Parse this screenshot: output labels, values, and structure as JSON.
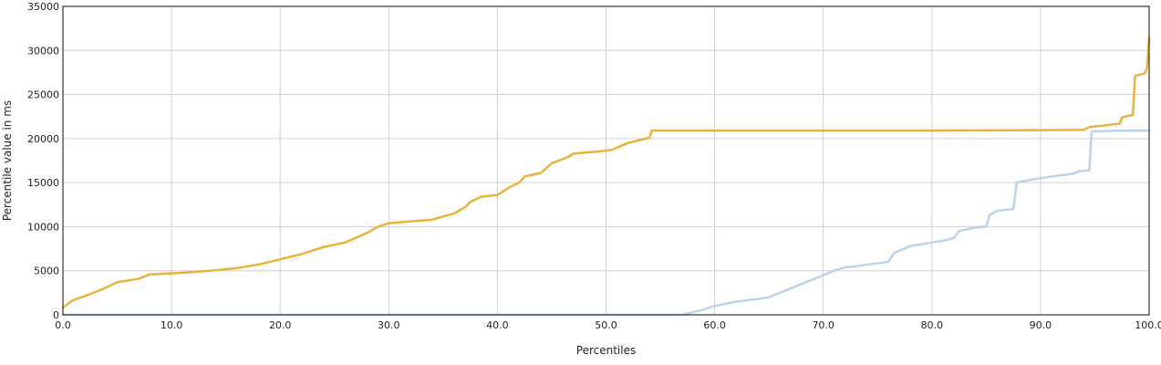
{
  "chart_data": {
    "type": "line",
    "title": "",
    "xlabel": "Percentiles",
    "ylabel": "Percentile value in ms",
    "xlim": [
      0,
      100
    ],
    "ylim": [
      0,
      35000
    ],
    "xticks": [
      0,
      10,
      20,
      30,
      40,
      50,
      60,
      70,
      80,
      90,
      100
    ],
    "xtick_labels": [
      "0.0",
      "10.0",
      "20.0",
      "30.0",
      "40.0",
      "50.0",
      "60.0",
      "70.0",
      "80.0",
      "90.0",
      "100.0"
    ],
    "yticks": [
      0,
      5000,
      10000,
      15000,
      20000,
      25000,
      30000,
      35000
    ],
    "ytick_labels": [
      "0",
      "5000",
      "10000",
      "15000",
      "20000",
      "25000",
      "30000",
      "35000"
    ],
    "grid": true,
    "series": [
      {
        "color": "#e8b33c",
        "points": [
          [
            0,
            800
          ],
          [
            0.5,
            1300
          ],
          [
            1,
            1700
          ],
          [
            2,
            2100
          ],
          [
            3,
            2600
          ],
          [
            4,
            3100
          ],
          [
            5,
            3700
          ],
          [
            6,
            3900
          ],
          [
            7,
            4100
          ],
          [
            8,
            4600
          ],
          [
            10,
            4700
          ],
          [
            12,
            4850
          ],
          [
            14,
            5050
          ],
          [
            16,
            5300
          ],
          [
            18,
            5700
          ],
          [
            20,
            6300
          ],
          [
            22,
            6900
          ],
          [
            24,
            7700
          ],
          [
            26,
            8200
          ],
          [
            28,
            9300
          ],
          [
            29,
            10000
          ],
          [
            30,
            10400
          ],
          [
            32,
            10600
          ],
          [
            34,
            10800
          ],
          [
            36,
            11500
          ],
          [
            37,
            12200
          ],
          [
            37.5,
            12800
          ],
          [
            38,
            13100
          ],
          [
            38.5,
            13400
          ],
          [
            40,
            13600
          ],
          [
            41,
            14400
          ],
          [
            42,
            15000
          ],
          [
            42.5,
            15700
          ],
          [
            44,
            16100
          ],
          [
            45,
            17200
          ],
          [
            46.5,
            17900
          ],
          [
            47,
            18300
          ],
          [
            49,
            18500
          ],
          [
            50.5,
            18700
          ],
          [
            52,
            19500
          ],
          [
            53,
            19800
          ],
          [
            54,
            20100
          ],
          [
            54.2,
            20900
          ],
          [
            60,
            20900
          ],
          [
            80,
            20900
          ],
          [
            90,
            20950
          ],
          [
            94,
            21000
          ],
          [
            94.5,
            21300
          ],
          [
            96,
            21500
          ],
          [
            97.3,
            21700
          ],
          [
            97.5,
            22400
          ],
          [
            98.5,
            22700
          ],
          [
            98.7,
            27100
          ],
          [
            99.6,
            27400
          ],
          [
            99.8,
            28000
          ],
          [
            100,
            31500
          ]
        ]
      },
      {
        "color": "#b9d4ea",
        "points": [
          [
            0,
            0
          ],
          [
            57,
            0
          ],
          [
            58,
            300
          ],
          [
            59,
            600
          ],
          [
            60,
            1000
          ],
          [
            62,
            1500
          ],
          [
            64,
            1800
          ],
          [
            65,
            2000
          ],
          [
            66,
            2500
          ],
          [
            68,
            3500
          ],
          [
            70,
            4500
          ],
          [
            71,
            5000
          ],
          [
            72,
            5400
          ],
          [
            73,
            5500
          ],
          [
            74,
            5700
          ],
          [
            76,
            6000
          ],
          [
            76.5,
            7000
          ],
          [
            78,
            7800
          ],
          [
            79,
            8000
          ],
          [
            80,
            8200
          ],
          [
            81,
            8400
          ],
          [
            82,
            8700
          ],
          [
            82.5,
            9500
          ],
          [
            84,
            9900
          ],
          [
            85,
            10000
          ],
          [
            85.3,
            11300
          ],
          [
            86,
            11800
          ],
          [
            87.5,
            12000
          ],
          [
            87.8,
            15000
          ],
          [
            88.5,
            15200
          ],
          [
            90,
            15500
          ],
          [
            91,
            15700
          ],
          [
            93,
            16000
          ],
          [
            93.5,
            16300
          ],
          [
            94.5,
            16400
          ],
          [
            94.7,
            20800
          ],
          [
            97,
            20900
          ],
          [
            100,
            20900
          ]
        ]
      }
    ]
  }
}
